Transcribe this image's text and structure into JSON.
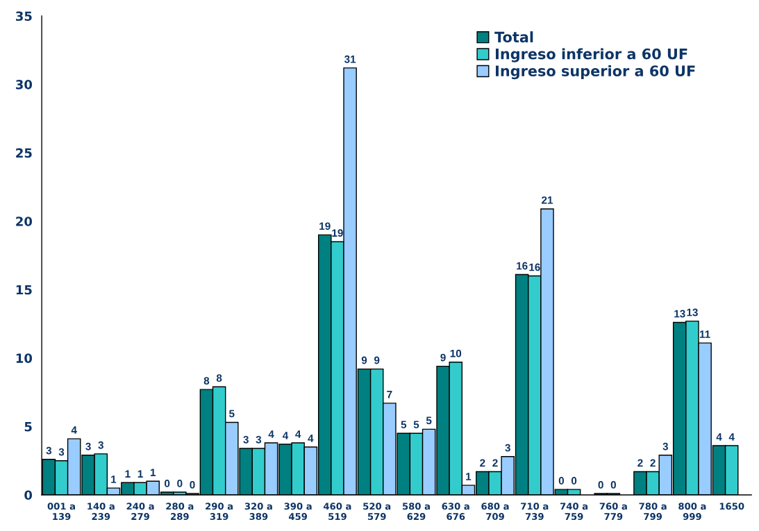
{
  "chart_data": {
    "type": "bar",
    "categories": [
      "001 a\n139",
      "140 a\n239",
      "240 a\n279",
      "280 a\n289",
      "290 a\n319",
      "320 a\n389",
      "390 a\n459",
      "460 a\n519",
      "520 a\n579",
      "580 a\n629",
      "630 a\n676",
      "680 a\n709",
      "710 a\n739",
      "740 a\n759",
      "760 a\n779",
      "780 a\n799",
      "800 a\n999",
      "1650"
    ],
    "series": [
      {
        "name": "Total",
        "color": "#008080",
        "values": [
          2.6,
          2.9,
          0.9,
          0.2,
          7.7,
          3.4,
          3.7,
          19.0,
          9.2,
          4.5,
          9.4,
          1.7,
          16.1,
          0.4,
          0.1,
          1.7,
          12.6,
          3.6
        ],
        "value_labels": [
          "3",
          "3",
          "1",
          "0",
          "8",
          "3",
          "4",
          "19",
          "9",
          "5",
          "9",
          "2",
          "16",
          "0",
          "0",
          "2",
          "13",
          "4"
        ]
      },
      {
        "name": "Ingreso inferior a 60 UF",
        "color": "#33cccc",
        "values": [
          2.5,
          3.0,
          0.9,
          0.2,
          7.9,
          3.4,
          3.8,
          18.5,
          9.2,
          4.5,
          9.7,
          1.7,
          16.0,
          0.4,
          0.1,
          1.7,
          12.7,
          3.6
        ],
        "value_labels": [
          "3",
          "3",
          "1",
          "0",
          "8",
          "3",
          "4",
          "19",
          "9",
          "5",
          "10",
          "2",
          "16",
          "0",
          "0",
          "2",
          "13",
          "4"
        ]
      },
      {
        "name": "Ingreso superior a 60 UF",
        "color": "#99ccff",
        "values": [
          4.1,
          0.5,
          1.0,
          0.1,
          5.3,
          3.8,
          3.5,
          31.2,
          6.7,
          4.8,
          0.7,
          2.8,
          20.9,
          null,
          null,
          2.9,
          11.1,
          null
        ],
        "value_labels": [
          "4",
          "1",
          "1",
          "0",
          "5",
          "4",
          "4",
          "31",
          "7",
          "5",
          "1",
          "3",
          "21",
          null,
          null,
          "3",
          "11",
          null
        ]
      }
    ],
    "ylim": [
      0,
      35
    ],
    "yticks": [
      0,
      5,
      10,
      15,
      20,
      25,
      30,
      35
    ],
    "grid": false,
    "legend": "top right"
  }
}
